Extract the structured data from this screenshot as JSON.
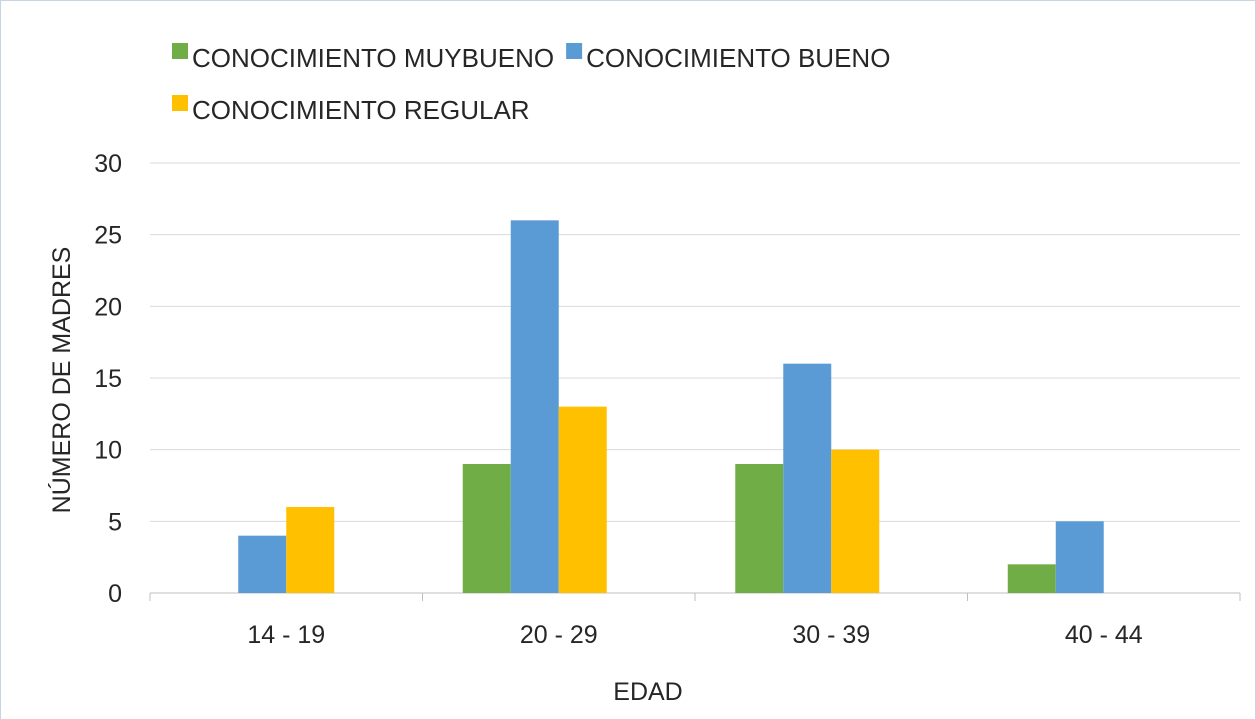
{
  "chart_data": {
    "type": "bar",
    "categories": [
      "14 - 19",
      "20 - 29",
      "30 - 39",
      "40 - 44"
    ],
    "series": [
      {
        "name": "CONOCIMIENTO MUYBUENO",
        "color": "#70ad47",
        "values": [
          0,
          9,
          9,
          2
        ]
      },
      {
        "name": "CONOCIMIENTO BUENO",
        "color": "#5b9bd5",
        "values": [
          4,
          26,
          16,
          5
        ]
      },
      {
        "name": "CONOCIMIENTO REGULAR",
        "color": "#ffc000",
        "values": [
          6,
          13,
          10,
          0
        ]
      }
    ],
    "xlabel": "EDAD",
    "ylabel": "NÚMERO DE MADRES",
    "ylim": [
      0,
      30
    ],
    "yticks": [
      0,
      5,
      10,
      15,
      20,
      25,
      30
    ],
    "grid": true
  }
}
